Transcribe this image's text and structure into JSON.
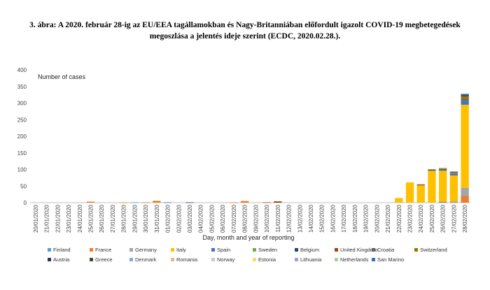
{
  "figure": {
    "title_line1": "3. ábra: A 2020. február 28-ig az EU/EEA tagállamokban és Nagy-Britanniában előfordult igazolt COVID-19 megbetegedések",
    "title_line2": "megoszlása a jelentés ideje szerint (ECDC, 2020.02.28.)."
  },
  "chart_data": {
    "type": "bar",
    "stacked": true,
    "ylabel": "Number of cases",
    "xlabel": "Day, month and year of reporting",
    "ylim": [
      0,
      400
    ],
    "yticks": [
      0,
      50,
      100,
      150,
      200,
      250,
      300,
      350,
      400
    ],
    "grid": false,
    "legend_position": "bottom",
    "categories": [
      "20/01/2020",
      "21/01/2020",
      "22/01/2020",
      "23/01/2020",
      "24/01/2020",
      "25/01/2020",
      "26/01/2020",
      "27/01/2020",
      "28/01/2020",
      "29/01/2020",
      "30/01/2020",
      "31/01/2020",
      "01/02/2020",
      "02/02/2020",
      "03/02/2020",
      "04/02/2020",
      "05/02/2020",
      "06/02/2020",
      "07/02/2020",
      "08/02/2020",
      "09/02/2020",
      "10/02/2020",
      "11/02/2020",
      "12/02/2020",
      "13/02/2020",
      "14/02/2020",
      "15/02/2020",
      "16/02/2020",
      "17/02/2020",
      "18/02/2020",
      "19/02/2020",
      "20/02/2020",
      "21/02/2020",
      "22/02/2020",
      "23/02/2020",
      "24/02/2020",
      "25/02/2020",
      "26/02/2020",
      "27/02/2020",
      "28/02/2020"
    ],
    "series": [
      {
        "name": "Finland",
        "color": "#5b9bd5",
        "values": [
          0,
          0,
          0,
          0,
          0,
          0,
          0,
          0,
          0,
          1,
          0,
          0,
          0,
          0,
          0,
          0,
          0,
          0,
          0,
          0,
          0,
          0,
          0,
          0,
          0,
          0,
          0,
          0,
          0,
          0,
          0,
          0,
          0,
          0,
          0,
          0,
          0,
          1,
          0,
          0
        ]
      },
      {
        "name": "France",
        "color": "#ed7d31",
        "values": [
          0,
          0,
          0,
          0,
          0,
          3,
          0,
          0,
          1,
          0,
          1,
          1,
          0,
          0,
          0,
          0,
          0,
          0,
          1,
          5,
          0,
          0,
          0,
          0,
          0,
          0,
          0,
          0,
          0,
          0,
          0,
          0,
          0,
          0,
          0,
          0,
          0,
          2,
          2,
          20
        ]
      },
      {
        "name": "Germany",
        "color": "#a5a5a5",
        "values": [
          0,
          0,
          0,
          0,
          0,
          0,
          0,
          0,
          0,
          0,
          0,
          0,
          0,
          0,
          0,
          0,
          0,
          0,
          0,
          0,
          0,
          0,
          0,
          0,
          0,
          0,
          0,
          0,
          0,
          0,
          0,
          0,
          0,
          0,
          0,
          0,
          0,
          0,
          2,
          25
        ]
      },
      {
        "name": "Italy",
        "color": "#ffc000",
        "values": [
          0,
          0,
          0,
          0,
          0,
          0,
          0,
          0,
          0,
          0,
          0,
          2,
          0,
          0,
          0,
          0,
          0,
          0,
          0,
          0,
          0,
          0,
          0,
          0,
          0,
          0,
          0,
          0,
          0,
          0,
          0,
          0,
          0,
          14,
          61,
          52,
          97,
          93,
          78,
          250
        ]
      },
      {
        "name": "Spain",
        "color": "#4472c4",
        "values": [
          0,
          0,
          0,
          0,
          0,
          0,
          0,
          0,
          0,
          0,
          0,
          0,
          1,
          0,
          0,
          0,
          0,
          0,
          0,
          0,
          0,
          0,
          0,
          0,
          0,
          0,
          0,
          0,
          0,
          0,
          0,
          0,
          0,
          0,
          0,
          0,
          0,
          3,
          5,
          12
        ]
      },
      {
        "name": "Sweden",
        "color": "#70ad47",
        "values": [
          0,
          0,
          0,
          0,
          0,
          0,
          0,
          0,
          0,
          0,
          0,
          0,
          0,
          0,
          0,
          0,
          0,
          0,
          0,
          0,
          0,
          0,
          0,
          0,
          0,
          0,
          0,
          0,
          0,
          0,
          0,
          0,
          0,
          0,
          0,
          0,
          0,
          0,
          1,
          2
        ]
      },
      {
        "name": "Belgium",
        "color": "#264478",
        "values": [
          0,
          0,
          0,
          0,
          0,
          0,
          0,
          0,
          0,
          0,
          0,
          0,
          0,
          0,
          1,
          0,
          0,
          0,
          0,
          0,
          0,
          0,
          0,
          0,
          0,
          0,
          0,
          0,
          0,
          0,
          0,
          0,
          0,
          0,
          0,
          0,
          0,
          0,
          0,
          1
        ]
      },
      {
        "name": "United Kingdom",
        "color": "#9e480e",
        "values": [
          0,
          0,
          0,
          0,
          0,
          0,
          0,
          0,
          0,
          0,
          0,
          2,
          0,
          0,
          0,
          0,
          0,
          0,
          0,
          0,
          0,
          1,
          4,
          0,
          0,
          0,
          0,
          0,
          0,
          0,
          0,
          0,
          0,
          0,
          0,
          3,
          0,
          0,
          2,
          3
        ]
      },
      {
        "name": "Croatia",
        "color": "#636363",
        "values": [
          0,
          0,
          0,
          0,
          0,
          0,
          0,
          0,
          0,
          0,
          0,
          0,
          0,
          0,
          0,
          0,
          0,
          0,
          0,
          0,
          0,
          0,
          0,
          0,
          0,
          0,
          0,
          0,
          0,
          0,
          0,
          0,
          0,
          0,
          0,
          0,
          1,
          2,
          3,
          2
        ]
      },
      {
        "name": "Switzerland",
        "color": "#997300",
        "values": [
          0,
          0,
          0,
          0,
          0,
          0,
          0,
          0,
          0,
          0,
          0,
          0,
          0,
          0,
          0,
          0,
          0,
          0,
          0,
          0,
          0,
          0,
          0,
          0,
          0,
          0,
          0,
          0,
          0,
          0,
          0,
          0,
          0,
          0,
          0,
          0,
          0,
          1,
          0,
          6
        ]
      },
      {
        "name": "Austria",
        "color": "#1f3864",
        "values": [
          0,
          0,
          0,
          0,
          0,
          0,
          0,
          0,
          0,
          0,
          0,
          0,
          0,
          0,
          0,
          0,
          0,
          0,
          0,
          0,
          0,
          0,
          0,
          0,
          0,
          0,
          0,
          0,
          0,
          0,
          0,
          0,
          0,
          0,
          0,
          0,
          2,
          0,
          0,
          3
        ]
      },
      {
        "name": "Greece",
        "color": "#375623",
        "values": [
          0,
          0,
          0,
          0,
          0,
          0,
          0,
          0,
          0,
          0,
          0,
          0,
          0,
          0,
          0,
          0,
          0,
          0,
          0,
          0,
          0,
          0,
          0,
          0,
          0,
          0,
          0,
          0,
          0,
          0,
          0,
          0,
          0,
          0,
          0,
          0,
          0,
          1,
          0,
          2
        ]
      },
      {
        "name": "Denmark",
        "color": "#7cafdd",
        "values": [
          0,
          0,
          0,
          0,
          0,
          0,
          0,
          0,
          0,
          0,
          0,
          0,
          0,
          0,
          0,
          0,
          0,
          0,
          0,
          0,
          0,
          0,
          0,
          0,
          0,
          0,
          0,
          0,
          0,
          0,
          0,
          0,
          0,
          0,
          0,
          0,
          0,
          0,
          1,
          0
        ]
      },
      {
        "name": "Romania",
        "color": "#f4b183",
        "values": [
          0,
          0,
          0,
          0,
          0,
          0,
          0,
          0,
          0,
          0,
          0,
          0,
          0,
          0,
          0,
          0,
          0,
          0,
          0,
          0,
          0,
          0,
          0,
          0,
          0,
          0,
          0,
          0,
          0,
          0,
          0,
          0,
          0,
          0,
          0,
          0,
          0,
          1,
          0,
          0
        ]
      },
      {
        "name": "Norway",
        "color": "#c9c9c9",
        "values": [
          0,
          0,
          0,
          0,
          0,
          0,
          0,
          0,
          0,
          0,
          0,
          0,
          0,
          0,
          0,
          0,
          0,
          0,
          0,
          0,
          0,
          0,
          0,
          0,
          0,
          0,
          0,
          0,
          0,
          0,
          0,
          0,
          0,
          0,
          0,
          0,
          0,
          1,
          0,
          0
        ]
      },
      {
        "name": "Estonia",
        "color": "#ffd966",
        "values": [
          0,
          0,
          0,
          0,
          0,
          0,
          0,
          0,
          0,
          0,
          0,
          0,
          0,
          0,
          0,
          0,
          0,
          0,
          0,
          0,
          0,
          0,
          0,
          0,
          0,
          0,
          0,
          0,
          0,
          0,
          0,
          0,
          0,
          0,
          0,
          0,
          0,
          1,
          0,
          0
        ]
      },
      {
        "name": "Lithuania",
        "color": "#8eaadb",
        "values": [
          0,
          0,
          0,
          0,
          0,
          0,
          0,
          0,
          0,
          0,
          0,
          0,
          0,
          0,
          0,
          0,
          0,
          0,
          0,
          0,
          0,
          0,
          0,
          0,
          0,
          0,
          0,
          0,
          0,
          0,
          0,
          0,
          0,
          0,
          0,
          0,
          0,
          0,
          0,
          1
        ]
      },
      {
        "name": "Netherlands",
        "color": "#a9d18e",
        "values": [
          0,
          0,
          0,
          0,
          0,
          0,
          0,
          0,
          0,
          0,
          0,
          0,
          0,
          0,
          0,
          0,
          0,
          0,
          0,
          0,
          0,
          0,
          0,
          0,
          0,
          0,
          0,
          0,
          0,
          0,
          0,
          0,
          0,
          0,
          0,
          0,
          0,
          0,
          1,
          0
        ]
      },
      {
        "name": "San Marino",
        "color": "#2e75b6",
        "values": [
          0,
          0,
          0,
          0,
          0,
          0,
          0,
          0,
          0,
          0,
          0,
          0,
          0,
          0,
          0,
          0,
          0,
          0,
          0,
          0,
          0,
          0,
          0,
          0,
          0,
          0,
          0,
          0,
          0,
          0,
          0,
          0,
          0,
          0,
          0,
          0,
          0,
          0,
          0,
          1
        ]
      }
    ]
  }
}
